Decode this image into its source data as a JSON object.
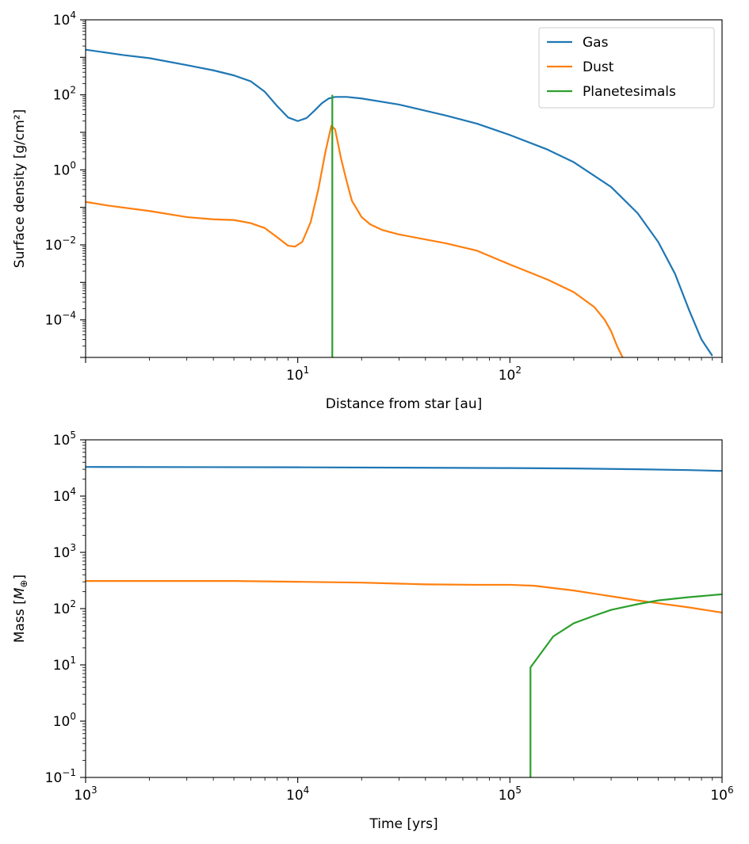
{
  "colors": {
    "gas": "#1f77b4",
    "dust": "#ff7f0e",
    "planetesimals": "#2ca02c"
  },
  "chart_data": [
    {
      "type": "line",
      "xscale": "log",
      "yscale": "log",
      "xlabel": "Distance from star [au]",
      "ylabel": "Surface density [g/cm²]",
      "xlim": [
        1.0,
        1000
      ],
      "ylim": [
        1e-05,
        10000
      ],
      "x_ticks": [
        {
          "base": "10",
          "exp": "1",
          "value": 10
        },
        {
          "base": "10",
          "exp": "2",
          "value": 100
        }
      ],
      "y_ticks": [
        {
          "base": "10",
          "exp": "−4",
          "value": 0.0001
        },
        {
          "base": "10",
          "exp": "−2",
          "value": 0.01
        },
        {
          "base": "10",
          "exp": "0",
          "value": 1
        },
        {
          "base": "10",
          "exp": "2",
          "value": 100
        },
        {
          "base": "10",
          "exp": "4",
          "value": 10000
        }
      ],
      "grid": false,
      "legend": {
        "position": "top-right",
        "entries": [
          "Gas",
          "Dust",
          "Planetesimals"
        ]
      },
      "series": [
        {
          "name": "Gas",
          "color_key": "gas",
          "points": [
            [
              1.0,
              1600
            ],
            [
              1.5,
              1150
            ],
            [
              2,
              950
            ],
            [
              3,
              620
            ],
            [
              4,
              450
            ],
            [
              5,
              330
            ],
            [
              6,
              230
            ],
            [
              7,
              120
            ],
            [
              8,
              50
            ],
            [
              9,
              25
            ],
            [
              10,
              20
            ],
            [
              11,
              24
            ],
            [
              12,
              38
            ],
            [
              13,
              60
            ],
            [
              14,
              80
            ],
            [
              15,
              88
            ],
            [
              17,
              88
            ],
            [
              20,
              80
            ],
            [
              30,
              55
            ],
            [
              50,
              28
            ],
            [
              70,
              17
            ],
            [
              100,
              8.5
            ],
            [
              150,
              3.5
            ],
            [
              200,
              1.6
            ],
            [
              300,
              0.35
            ],
            [
              400,
              0.07
            ],
            [
              500,
              0.012
            ],
            [
              600,
              0.0017
            ],
            [
              700,
              0.00018
            ],
            [
              800,
              3e-05
            ],
            [
              900,
              1.1e-05
            ]
          ]
        },
        {
          "name": "Dust",
          "color_key": "dust",
          "points": [
            [
              1.0,
              0.14
            ],
            [
              1.3,
              0.11
            ],
            [
              2,
              0.08
            ],
            [
              3,
              0.055
            ],
            [
              4,
              0.048
            ],
            [
              5,
              0.046
            ],
            [
              6,
              0.038
            ],
            [
              7,
              0.028
            ],
            [
              8,
              0.016
            ],
            [
              9,
              0.0095
            ],
            [
              9.7,
              0.009
            ],
            [
              10.5,
              0.012
            ],
            [
              11.5,
              0.04
            ],
            [
              12.5,
              0.3
            ],
            [
              13.5,
              3
            ],
            [
              14.4,
              15
            ],
            [
              15,
              12
            ],
            [
              16,
              2
            ],
            [
              17,
              0.5
            ],
            [
              18,
              0.15
            ],
            [
              20,
              0.055
            ],
            [
              22,
              0.035
            ],
            [
              25,
              0.025
            ],
            [
              30,
              0.019
            ],
            [
              50,
              0.011
            ],
            [
              70,
              0.007
            ],
            [
              100,
              0.003
            ],
            [
              150,
              0.0012
            ],
            [
              200,
              0.00055
            ],
            [
              250,
              0.00022
            ],
            [
              280,
              0.0001
            ],
            [
              300,
              5e-05
            ],
            [
              320,
              2e-05
            ],
            [
              340,
              1e-05
            ]
          ]
        },
        {
          "name": "Planetesimals",
          "color_key": "planetesimals",
          "points": [
            [
              14.55,
              1e-05
            ],
            [
              14.55,
              100
            ]
          ]
        }
      ]
    },
    {
      "type": "line",
      "xscale": "log",
      "yscale": "log",
      "xlabel": "Time [yrs]",
      "ylabel_main": "Mass [",
      "ylabel_sym": "M",
      "ylabel_sub": "⊕",
      "ylabel_end": "]",
      "xlim": [
        1000,
        1000000
      ],
      "ylim": [
        0.1,
        100000
      ],
      "x_ticks": [
        {
          "base": "10",
          "exp": "3",
          "value": 1000
        },
        {
          "base": "10",
          "exp": "4",
          "value": 10000
        },
        {
          "base": "10",
          "exp": "5",
          "value": 100000
        },
        {
          "base": "10",
          "exp": "6",
          "value": 1000000
        }
      ],
      "y_ticks": [
        {
          "base": "10",
          "exp": "−1",
          "value": 0.1
        },
        {
          "base": "10",
          "exp": "0",
          "value": 1
        },
        {
          "base": "10",
          "exp": "1",
          "value": 10
        },
        {
          "base": "10",
          "exp": "2",
          "value": 100
        },
        {
          "base": "10",
          "exp": "3",
          "value": 1000
        },
        {
          "base": "10",
          "exp": "4",
          "value": 10000
        },
        {
          "base": "10",
          "exp": "5",
          "value": 100000
        }
      ],
      "grid": false,
      "series": [
        {
          "color_key": "gas",
          "points": [
            [
              1000,
              33000
            ],
            [
              10000,
              32500
            ],
            [
              100000,
              31500
            ],
            [
              200000,
              31000
            ],
            [
              400000,
              30000
            ],
            [
              700000,
              29000
            ],
            [
              1000000,
              28000
            ]
          ]
        },
        {
          "color_key": "dust",
          "points": [
            [
              1000,
              310
            ],
            [
              5000,
              310
            ],
            [
              10000,
              300
            ],
            [
              20000,
              290
            ],
            [
              40000,
              270
            ],
            [
              70000,
              265
            ],
            [
              100000,
              265
            ],
            [
              130000,
              255
            ],
            [
              200000,
              210
            ],
            [
              400000,
              140
            ],
            [
              700000,
              105
            ],
            [
              1000000,
              85
            ]
          ]
        },
        {
          "color_key": "planetesimals",
          "points": [
            [
              125000,
              0.1
            ],
            [
              125000,
              9
            ],
            [
              160000,
              32
            ],
            [
              200000,
              55
            ],
            [
              250000,
              75
            ],
            [
              300000,
              95
            ],
            [
              400000,
              120
            ],
            [
              500000,
              140
            ],
            [
              700000,
              160
            ],
            [
              1000000,
              180
            ]
          ]
        }
      ]
    }
  ]
}
